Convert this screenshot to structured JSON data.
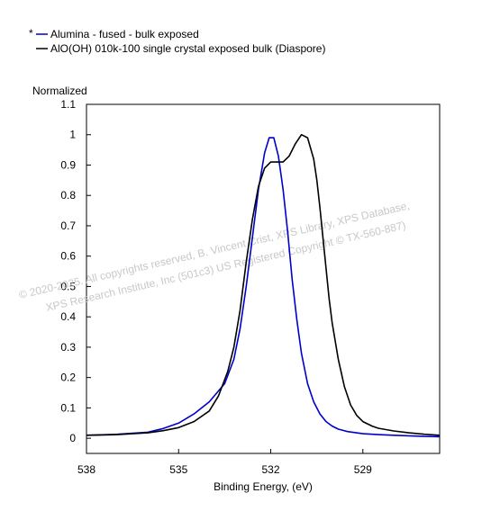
{
  "chart_data": {
    "type": "line",
    "title": "",
    "xlabel": "Binding Energy, (eV)",
    "ylabel": "Normalized",
    "xlim": [
      538,
      526.5
    ],
    "ylim": [
      -0.05,
      1.1
    ],
    "x_reversed": true,
    "x_ticks": [
      538,
      535,
      532,
      529
    ],
    "y_ticks": [
      0,
      0.1,
      0.2,
      0.3,
      0.4,
      0.5,
      0.6,
      0.7,
      0.8,
      0.9,
      1,
      1.1
    ],
    "y_tick_labels": [
      "0",
      "0.1",
      "0.2",
      "0.3",
      "0.4",
      "0.5",
      "0.6",
      "0.7",
      "0.8",
      "0.9",
      "1",
      "1.1"
    ],
    "x_tick_labels": [
      "538",
      "535",
      "532",
      "529"
    ],
    "grid": false,
    "legend_position": "top-left",
    "legend_marker": "*",
    "series": [
      {
        "name": "Alumina - fused - bulk exposed",
        "color": "#0000cc",
        "x": [
          538,
          537,
          536,
          535.5,
          535,
          534.5,
          534,
          533.5,
          533.2,
          533,
          532.8,
          532.6,
          532.4,
          532.2,
          532.05,
          531.9,
          531.75,
          531.6,
          531.45,
          531.3,
          531.15,
          531,
          530.8,
          530.6,
          530.4,
          530.2,
          530,
          529.8,
          529.5,
          529,
          528.5,
          528,
          527.5,
          527,
          526.5
        ],
        "y": [
          0.01,
          0.013,
          0.02,
          0.032,
          0.05,
          0.08,
          0.12,
          0.18,
          0.26,
          0.36,
          0.5,
          0.66,
          0.82,
          0.94,
          0.99,
          0.99,
          0.93,
          0.82,
          0.68,
          0.52,
          0.39,
          0.28,
          0.18,
          0.12,
          0.08,
          0.055,
          0.04,
          0.03,
          0.022,
          0.015,
          0.012,
          0.01,
          0.008,
          0.006,
          0.005
        ]
      },
      {
        "name": "AlO(OH) 010k-100 single crystal exposed bulk (Diaspore)",
        "color": "#000000",
        "x": [
          538,
          537,
          536,
          535.5,
          535,
          534.5,
          534,
          533.7,
          533.4,
          533.2,
          533,
          532.8,
          532.6,
          532.4,
          532.2,
          532,
          531.8,
          531.6,
          531.4,
          531.2,
          531,
          530.8,
          530.6,
          530.5,
          530.4,
          530.3,
          530.2,
          530.1,
          530,
          529.8,
          529.6,
          529.4,
          529.2,
          529,
          528.7,
          528.5,
          528,
          527.5,
          527,
          526.5
        ],
        "y": [
          0.01,
          0.012,
          0.018,
          0.025,
          0.035,
          0.055,
          0.09,
          0.14,
          0.22,
          0.3,
          0.42,
          0.58,
          0.72,
          0.83,
          0.89,
          0.91,
          0.91,
          0.91,
          0.93,
          0.97,
          1.0,
          0.99,
          0.92,
          0.85,
          0.76,
          0.66,
          0.56,
          0.46,
          0.38,
          0.26,
          0.17,
          0.11,
          0.075,
          0.055,
          0.04,
          0.033,
          0.024,
          0.018,
          0.013,
          0.01
        ]
      }
    ],
    "watermark_lines": [
      "©  2020-2025.  All copyrights reserved,    B. Vincent Crist,  XPS Library, XPS Database,",
      "XPS Research Institute, Inc (501c3)   US Registered Copyright © TX-560-887)"
    ]
  }
}
